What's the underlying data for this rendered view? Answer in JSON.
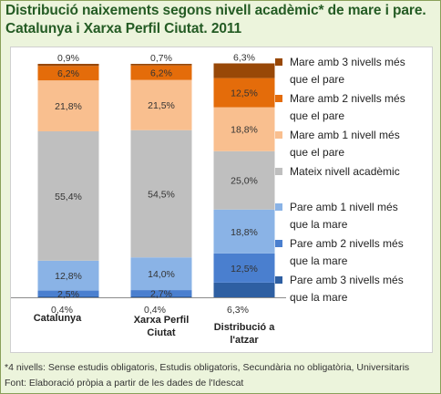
{
  "title": {
    "line1": "Distribució naixements segons nivell acadèmic* de mare i pare.",
    "line2": "Catalunya i Xarxa Perfil Ciutat. 2011"
  },
  "footnotes": {
    "note": "*4 nivells: Sense estudis obligatoris, Estudis obligatoris, Secundària no obligatòria, Universitaris",
    "source": "Font: Elaboració pròpia a partir de les dades de l'Idescat"
  },
  "chart_data": {
    "type": "bar",
    "stacked": true,
    "percent": true,
    "categories": [
      [
        "Catalunya"
      ],
      [
        "Xarxa Perfil",
        "Ciutat"
      ],
      [
        "Distribució a",
        "l'atzar"
      ]
    ],
    "series": [
      {
        "name": "Pare amb 3 nivells més que la mare",
        "color": "#2e5fa2",
        "values": [
          0.4,
          0.4,
          6.3
        ],
        "labels": [
          "0,4%",
          "0,4%",
          "6,3%"
        ],
        "label_pos": "below-axis"
      },
      {
        "name": "Pare amb 2 nivells més que la mare",
        "color": "#4a7fcf",
        "values": [
          2.5,
          2.7,
          12.5
        ],
        "labels": [
          "2,5%",
          "2,7%",
          "12,5%"
        ]
      },
      {
        "name": "Pare amb 1 nivell més que la mare",
        "color": "#8ab3e6",
        "values": [
          12.8,
          14.0,
          18.8
        ],
        "labels": [
          "12,8%",
          "14,0%",
          "18,8%"
        ]
      },
      {
        "name": "Mateix nivell acadèmic",
        "color": "#bfbfbf",
        "values": [
          55.4,
          54.5,
          25.0
        ],
        "labels": [
          "55,4%",
          "54,5%",
          "25,0%"
        ]
      },
      {
        "name": "Mare amb 1 nivell més que el pare",
        "color": "#f9bf8f",
        "values": [
          21.8,
          21.5,
          18.8
        ],
        "labels": [
          "21,8%",
          "21,5%",
          "18,8%"
        ]
      },
      {
        "name": "Mare amb 2 nivells més que el pare",
        "color": "#e46c0a",
        "values": [
          6.2,
          6.2,
          12.5
        ],
        "labels": [
          "6,2%",
          "6,2%",
          "12,5%"
        ]
      },
      {
        "name": "Mare amb 3 nivells més que el pare",
        "color": "#984807",
        "values": [
          0.9,
          0.7,
          6.3
        ],
        "labels": [
          "0,9%",
          "0,7%",
          "6,3%"
        ],
        "label_pos": "above-bar"
      }
    ],
    "legend": {
      "position": "right",
      "items": [
        {
          "lines": [
            "Mare amb 3 nivells més",
            "que el pare"
          ],
          "color": "#984807"
        },
        {
          "lines": [
            "Mare amb 2 nivells més",
            "que el pare"
          ],
          "color": "#e46c0a"
        },
        {
          "lines": [
            "Mare amb 1 nivell més",
            "que el pare"
          ],
          "color": "#f9bf8f"
        },
        {
          "lines": [
            "Mateix nivell acadèmic"
          ],
          "color": "#bfbfbf"
        },
        {
          "lines": [
            "Pare amb 1 nivell més",
            "que la mare"
          ],
          "color": "#8ab3e6"
        },
        {
          "lines": [
            "Pare amb 2 nivells més",
            "que la mare"
          ],
          "color": "#4a7fcf"
        },
        {
          "lines": [
            "Pare amb 3 nivells més",
            "que la mare"
          ],
          "color": "#2e5fa2"
        }
      ]
    },
    "ylim": [
      0,
      100
    ],
    "grid": false
  }
}
